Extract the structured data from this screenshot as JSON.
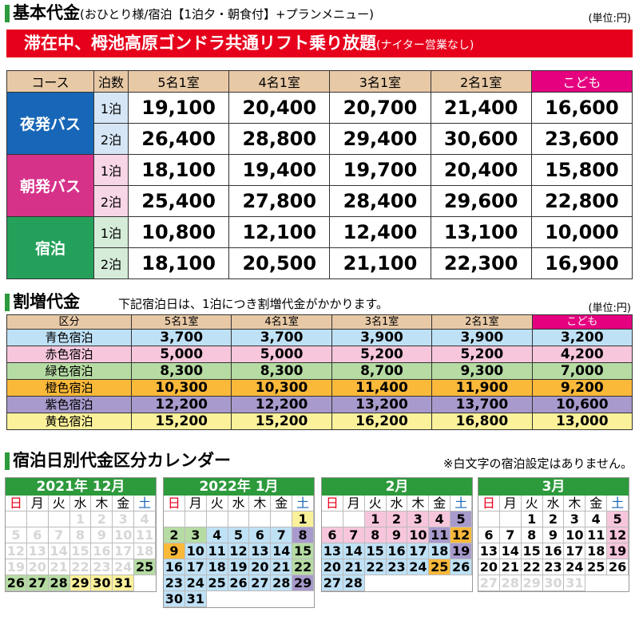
{
  "basic": {
    "title": "基本代金",
    "title_sub": "(おひとり様/宿泊【1泊夕・朝食付】+プランメニュー)",
    "unit": "(単位:円)",
    "banner": "滞在中、栂池高原ゴンドラ共通リフト乗り放題",
    "banner_sub": "(ナイター営業なし)",
    "headers": [
      "コース",
      "泊数",
      "5名1室",
      "4名1室",
      "3名1室",
      "2名1室",
      "こども"
    ],
    "courses": [
      {
        "name": "夜発バス",
        "rows": [
          {
            "nights": "1泊",
            "prices": [
              "19,100",
              "20,400",
              "20,700",
              "21,400",
              "16,600"
            ]
          },
          {
            "nights": "2泊",
            "prices": [
              "26,400",
              "28,800",
              "29,400",
              "30,600",
              "23,600"
            ]
          }
        ]
      },
      {
        "name": "朝発バス",
        "rows": [
          {
            "nights": "1泊",
            "prices": [
              "18,100",
              "19,400",
              "19,700",
              "20,400",
              "15,800"
            ]
          },
          {
            "nights": "2泊",
            "prices": [
              "25,400",
              "27,800",
              "28,400",
              "29,600",
              "22,800"
            ]
          }
        ]
      },
      {
        "name": "宿泊",
        "rows": [
          {
            "nights": "1泊",
            "prices": [
              "10,800",
              "12,100",
              "12,400",
              "13,100",
              "10,000"
            ]
          },
          {
            "nights": "2泊",
            "prices": [
              "18,100",
              "20,500",
              "21,100",
              "22,300",
              "16,900"
            ]
          }
        ]
      }
    ]
  },
  "surcharge": {
    "title": "割増代金",
    "note": "下記宿泊日は、1泊につき割増代金がかかります。",
    "unit": "(単位:円)",
    "headers": [
      "区分",
      "5名1室",
      "4名1室",
      "3名1室",
      "2名1室",
      "こども"
    ],
    "rows": [
      {
        "label": "青色宿泊",
        "color": "#bfe1f6",
        "values": [
          "3,700",
          "3,700",
          "3,900",
          "3,900",
          "3,200"
        ]
      },
      {
        "label": "赤色宿泊",
        "color": "#f7c6dc",
        "values": [
          "5,000",
          "5,000",
          "5,200",
          "5,200",
          "4,200"
        ]
      },
      {
        "label": "緑色宿泊",
        "color": "#b6dca3",
        "values": [
          "8,300",
          "8,300",
          "8,700",
          "9,300",
          "7,000"
        ]
      },
      {
        "label": "橙色宿泊",
        "color": "#fbb93a",
        "values": [
          "10,300",
          "10,300",
          "11,400",
          "11,900",
          "9,200"
        ]
      },
      {
        "label": "紫色宿泊",
        "color": "#a89acc",
        "values": [
          "12,200",
          "12,200",
          "13,200",
          "13,700",
          "10,600"
        ]
      },
      {
        "label": "黄色宿泊",
        "color": "#fbf19a",
        "values": [
          "15,200",
          "15,200",
          "16,200",
          "16,800",
          "13,000"
        ]
      }
    ]
  },
  "calendar": {
    "title": "宿泊日別代金区分カレンダー",
    "note": "※白文字の宿泊設定はありません。",
    "weekdays": [
      "日",
      "月",
      "火",
      "水",
      "木",
      "金",
      "土"
    ],
    "months": [
      {
        "title": "2021年 12月",
        "offset": 3,
        "days": [
          "white",
          "white",
          "white",
          "white",
          "white",
          "white",
          "white",
          "white",
          "white",
          "white",
          "white",
          "white",
          "white",
          "white",
          "white",
          "white",
          "white",
          "white",
          "white",
          "white",
          "white",
          "white",
          "white",
          "white",
          "green",
          "green",
          "green",
          "green",
          "yellow",
          "yellow",
          "yellow"
        ]
      },
      {
        "title": "2022年 1月",
        "offset": 6,
        "days": [
          "yellow",
          "green",
          "green",
          "blue",
          "blue",
          "blue",
          "blue",
          "purple",
          "orange",
          "blue",
          "blue",
          "blue",
          "blue",
          "blue",
          "green",
          "blue",
          "blue",
          "blue",
          "blue",
          "blue",
          "blue",
          "green",
          "blue",
          "blue",
          "blue",
          "blue",
          "blue",
          "blue",
          "purple",
          "blue",
          "blue"
        ]
      },
      {
        "title": "2月",
        "offset": 2,
        "days": [
          "red",
          "red",
          "red",
          "red",
          "purple",
          "red",
          "red",
          "red",
          "red",
          "red",
          "purple",
          "orange",
          "blue",
          "blue",
          "blue",
          "blue",
          "blue",
          "blue",
          "purple",
          "blue",
          "blue",
          "blue",
          "blue",
          "blue",
          "orange",
          "blue",
          "blue",
          "blue"
        ]
      },
      {
        "title": "3月",
        "offset": 2,
        "days": [
          "none",
          "none",
          "none",
          "none",
          "red",
          "none",
          "none",
          "none",
          "none",
          "none",
          "none",
          "red",
          "none",
          "none",
          "none",
          "none",
          "none",
          "none",
          "red",
          "none",
          "none",
          "none",
          "none",
          "none",
          "none",
          "none",
          "white",
          "white",
          "white",
          "white",
          "white"
        ]
      }
    ]
  }
}
